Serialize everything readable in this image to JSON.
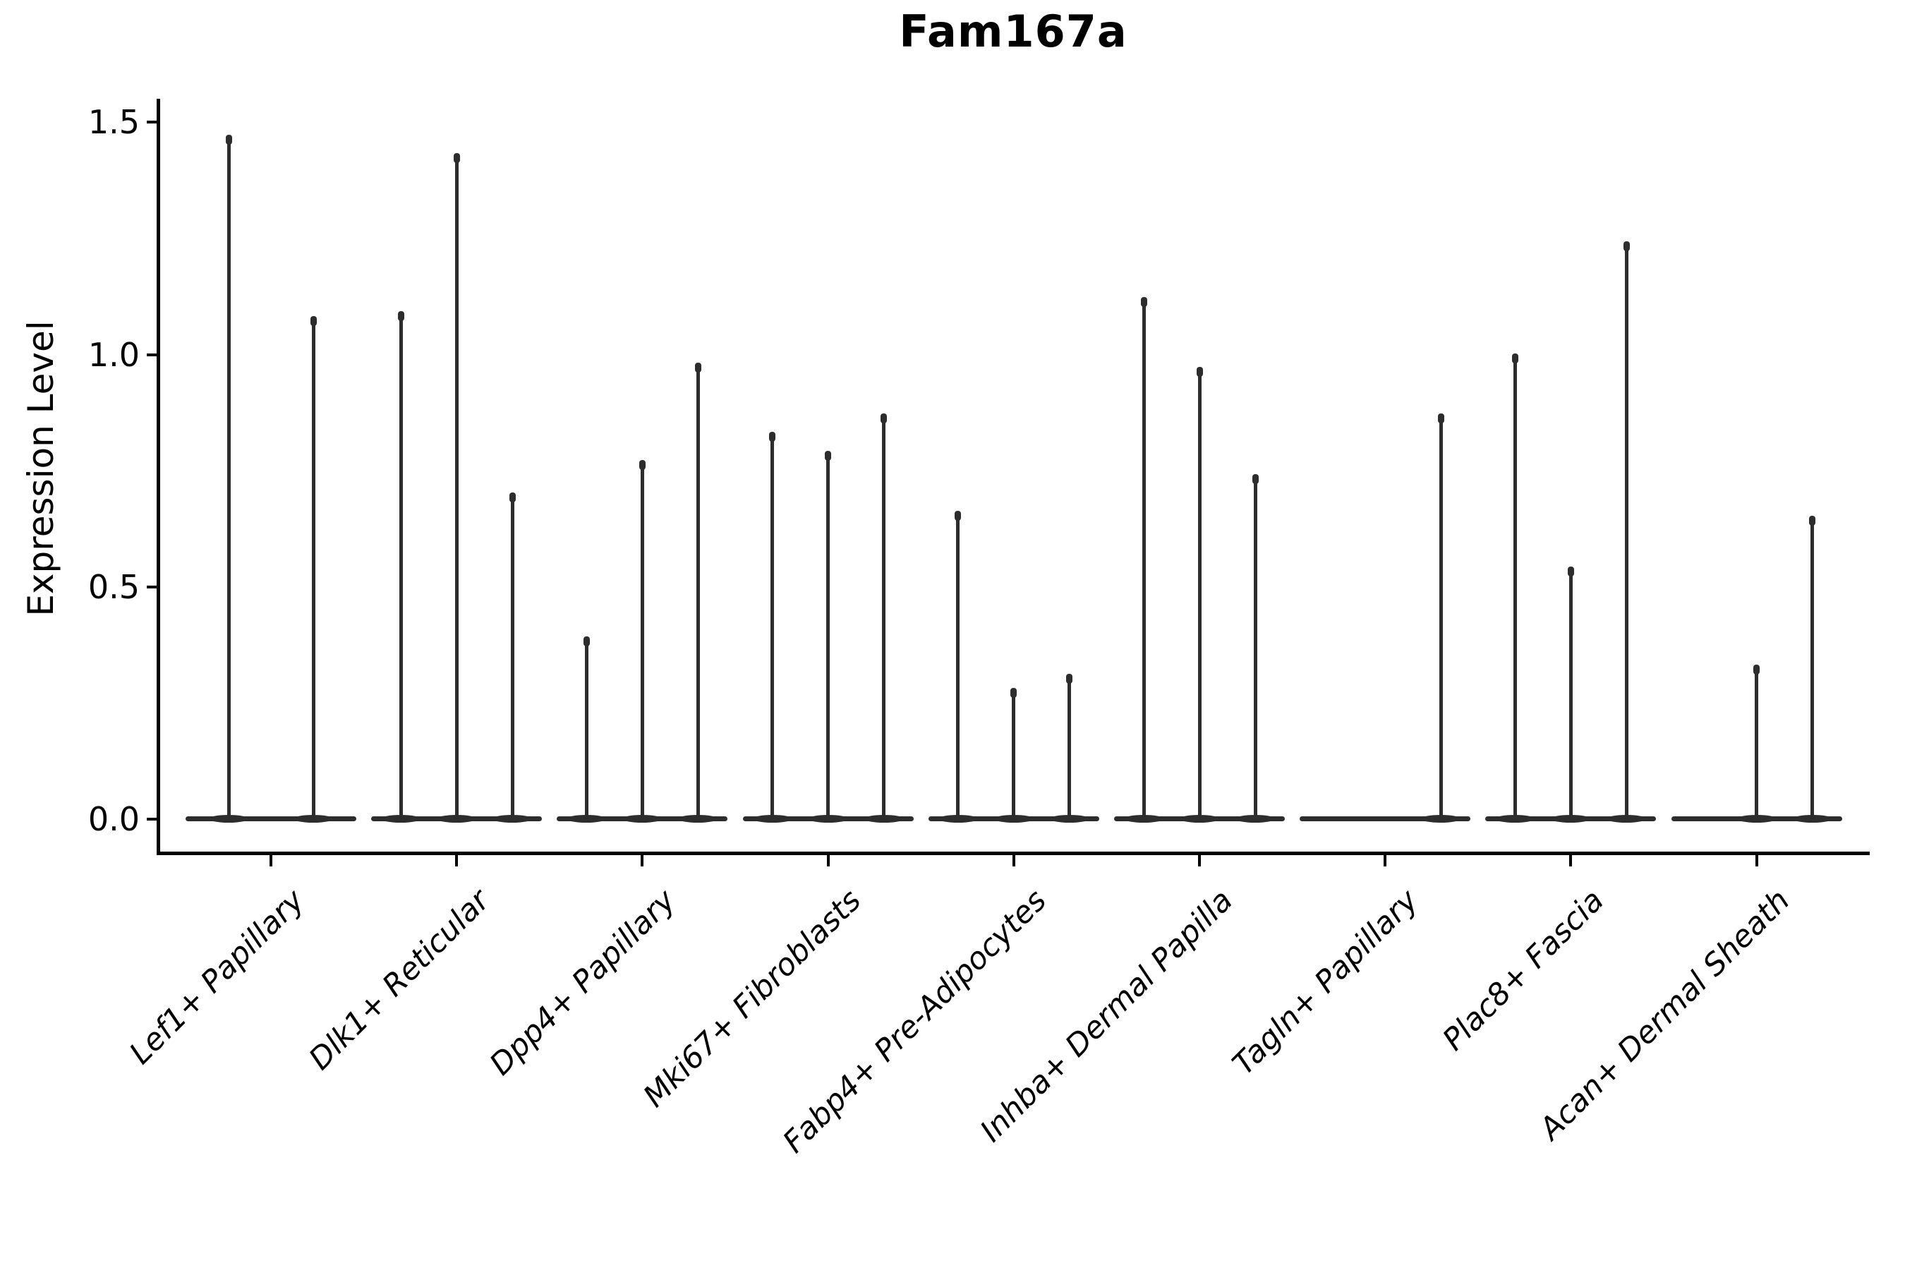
{
  "title": "Fam167a",
  "y_axis": {
    "label": "Expression Level",
    "tick_labels": [
      "0.0",
      "0.5",
      "1.0",
      "1.5"
    ]
  },
  "colors": {
    "ink": "#2d2d2d",
    "spine": "#000000",
    "text": "#000000",
    "background": "#ffffff"
  },
  "chart_data": {
    "type": "violin",
    "title": "Fam167a",
    "xlabel": "",
    "ylabel": "Expression Level",
    "ylim": [
      0,
      1.5
    ],
    "yticks": [
      0.0,
      0.5,
      1.0,
      1.5
    ],
    "grid": false,
    "legend": "none",
    "note": "Single-cell expression violin plot; each cluster has narrow spike violins (2-3 per cluster) rising from a flat zero baseline; values are the maximum expression level reached by each violin spike (0 = flat violin with no spike).",
    "categories": [
      "Lef1+ Papillary",
      "Dlk1+ Reticular",
      "Dpp4+ Papillary",
      "Mki67+ Fibroblasts",
      "Fabp4+ Pre-Adipocytes",
      "Inhba+ Dermal Papilla",
      "Tagln+ Papillary",
      "Plac8+ Fascia",
      "Acan+ Dermal Sheath"
    ],
    "series": [
      {
        "category": "Lef1+ Papillary",
        "violin_maxima": [
          1.47,
          1.08
        ]
      },
      {
        "category": "Dlk1+ Reticular",
        "violin_maxima": [
          1.09,
          1.43,
          0.7
        ]
      },
      {
        "category": "Dpp4+ Papillary",
        "violin_maxima": [
          0.39,
          0.77,
          0.98
        ]
      },
      {
        "category": "Mki67+ Fibroblasts",
        "violin_maxima": [
          0.83,
          0.79,
          0.87
        ]
      },
      {
        "category": "Fabp4+ Pre-Adipocytes",
        "violin_maxima": [
          0.66,
          0.28,
          0.31
        ]
      },
      {
        "category": "Inhba+ Dermal Papilla",
        "violin_maxima": [
          1.12,
          0.97,
          0.74
        ]
      },
      {
        "category": "Tagln+ Papillary",
        "violin_maxima": [
          0,
          0,
          0.87
        ]
      },
      {
        "category": "Plac8+ Fascia",
        "violin_maxima": [
          1.0,
          0.54,
          1.24
        ]
      },
      {
        "category": "Acan+ Dermal Sheath",
        "violin_maxima": [
          0,
          0.33,
          0.65
        ]
      }
    ]
  }
}
